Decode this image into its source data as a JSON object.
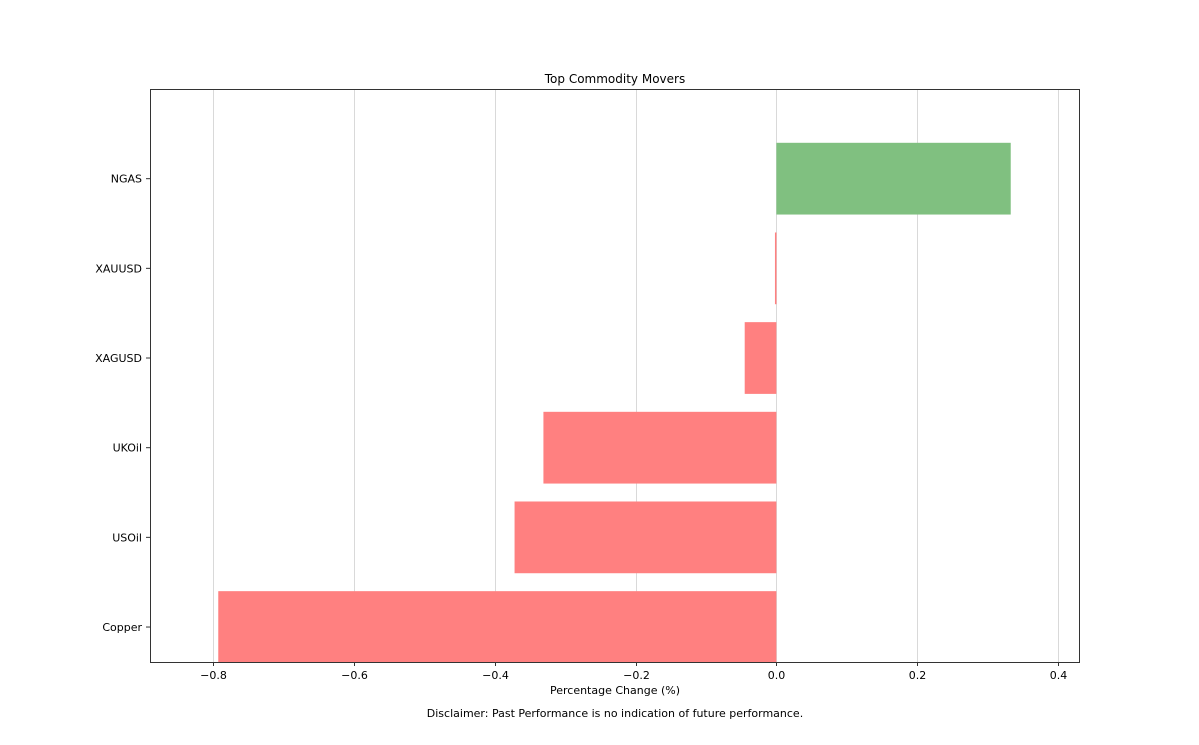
{
  "chart_data": {
    "type": "bar",
    "orientation": "horizontal",
    "title": "Top Commodity Movers",
    "xlabel": "Percentage Change (%)",
    "ylabel": "",
    "xlim": [
      -0.89,
      0.43
    ],
    "xticks": [
      -0.8,
      -0.6,
      -0.4,
      -0.2,
      0.0,
      0.2,
      0.4
    ],
    "xtick_labels": [
      "−0.8",
      "−0.6",
      "−0.4",
      "−0.2",
      "0.0",
      "0.2",
      "0.4"
    ],
    "grid": "vertical",
    "categories": [
      "NGAS",
      "XAUUSD",
      "XAGUSD",
      "UKOil",
      "USOil",
      "Copper"
    ],
    "values": [
      0.333,
      -0.002,
      -0.045,
      -0.331,
      -0.372,
      -0.793
    ],
    "colors": {
      "positive": "#80c080",
      "negative": "#ff8080"
    }
  },
  "disclaimer": "Disclaimer: Past Performance is no indication of future performance."
}
